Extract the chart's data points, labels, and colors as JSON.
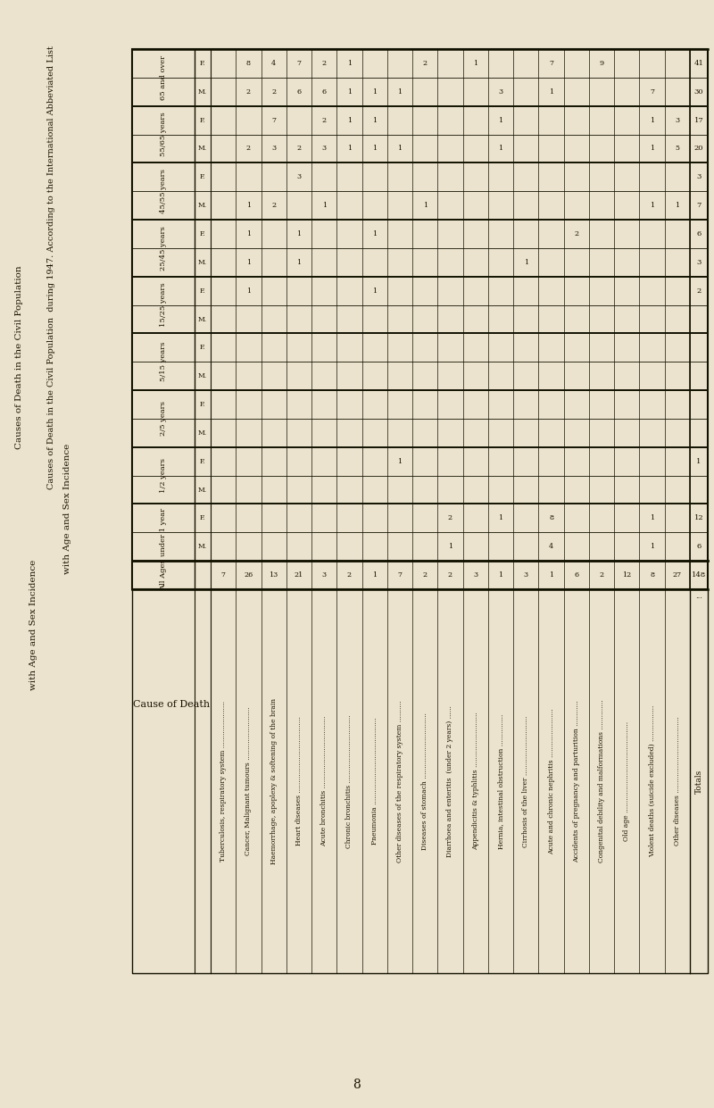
{
  "bg_color": "#ece3ce",
  "title_line1": "Causes of Death in the Civil Population  during 1947. According to the International Abbeviated List",
  "title_line2": "with Age and Sex Incidence",
  "sidebar_text1": "Causes of Death in the Civil Population",
  "sidebar_text2": "with Age and Sex Incidence",
  "page_num": "8",
  "causes": [
    "Tuberculosis, respiratory system",
    "Cancer, Malignant tumours",
    "Haemorrhage, apoplexy & softening of the brain",
    "Heart diseases",
    "Acute bronchitis",
    "Chronic bronchitis",
    "Pneumonia",
    "Other diseases of the respiratory system",
    "Diseases of stomach",
    "Diarrhoea and enteritis  (under 2 years)",
    "Appendicitis & typhlitis",
    "Hernia, intestinal obstruction",
    "Cirrhosis of the liver",
    "Acute and chronic nephritis",
    "Accidents of pregnancy and parturition",
    "Congenital debility and malformations",
    "Old age",
    "Violent deaths (suicide excluded)",
    "Other diseases"
  ],
  "cause_dots": [
    " ......................",
    " .........................",
    "",
    " ....................................",
    " ..................................",
    " ................................",
    " .........................................",
    " ..........",
    " ...............................",
    " ......",
    " ..........................",
    " ...............",
    " ............................",
    " .......................",
    " ............",
    " ..............",
    " ...........................................",
    " .................",
    " ...................................."
  ],
  "age_groups": [
    "under 1 year",
    "1/2 years",
    "2/5 years",
    "5/15 years",
    "15/25 years",
    "25/45 years",
    "45/55 years",
    "55/65 years",
    "65 and over"
  ],
  "all_ages": [
    7,
    26,
    13,
    21,
    3,
    2,
    1,
    7,
    2,
    2,
    3,
    1,
    3,
    1,
    6,
    2,
    12,
    8,
    27
  ],
  "all_ages_total": 148,
  "rows_MF": [
    {
      "M": [
        "",
        "",
        "",
        "",
        "",
        "",
        "",
        "",
        "",
        1,
        "",
        "",
        "",
        4,
        "",
        "",
        "",
        1,
        ""
      ],
      "F": [
        "",
        "",
        "",
        "",
        "",
        "",
        "",
        "",
        "",
        2,
        "",
        1,
        "",
        8,
        "",
        "",
        "",
        1,
        ""
      ],
      "Mtot": 6,
      "Ftot": 12
    },
    {
      "M": [
        "",
        "",
        "",
        "",
        "",
        "",
        "",
        "",
        "",
        "",
        "",
        "",
        "",
        "",
        "",
        "",
        "",
        "",
        ""
      ],
      "F": [
        "",
        "",
        "",
        "",
        "",
        "",
        "",
        1,
        "",
        "",
        "",
        "",
        "",
        "",
        "",
        "",
        "",
        "",
        ""
      ],
      "Mtot": "",
      "Ftot": 1
    },
    {
      "M": [
        "",
        "",
        "",
        "",
        "",
        "",
        "",
        "",
        "",
        "",
        "",
        "",
        "",
        "",
        "",
        "",
        "",
        "",
        ""
      ],
      "F": [
        "",
        "",
        "",
        "",
        "",
        "",
        "",
        "",
        "",
        "",
        "",
        "",
        "",
        "",
        "",
        "",
        "",
        "",
        ""
      ],
      "Mtot": "",
      "Ftot": ""
    },
    {
      "M": [
        "",
        "",
        "",
        "",
        "",
        "",
        "",
        "",
        "",
        "",
        "",
        "",
        "",
        "",
        "",
        "",
        "",
        "",
        ""
      ],
      "F": [
        "",
        "",
        "",
        "",
        "",
        "",
        "",
        "",
        "",
        "",
        "",
        "",
        "",
        "",
        "",
        "",
        "",
        "",
        ""
      ],
      "Mtot": "",
      "Ftot": ""
    },
    {
      "M": [
        "",
        "",
        "",
        "",
        "",
        "",
        "",
        "",
        "",
        "",
        "",
        "",
        "",
        "",
        "",
        "",
        "",
        "",
        ""
      ],
      "F": [
        "",
        1,
        "",
        "",
        "",
        "",
        1,
        "",
        "",
        "",
        "",
        "",
        "",
        "",
        "",
        "",
        "",
        "",
        ""
      ],
      "Mtot": "",
      "Ftot": 2
    },
    {
      "M": [
        "",
        1,
        "",
        1,
        "",
        "",
        "",
        "",
        "",
        "",
        "",
        "",
        1,
        "",
        "",
        "",
        "",
        "",
        ""
      ],
      "F": [
        "",
        1,
        "",
        1,
        "",
        "",
        1,
        "",
        "",
        "",
        "",
        "",
        "",
        "",
        2,
        "",
        "",
        "",
        ""
      ],
      "Mtot": 3,
      "Ftot": 6
    },
    {
      "M": [
        "",
        1,
        2,
        "",
        1,
        "",
        "",
        "",
        1,
        "",
        "",
        "",
        "",
        "",
        "",
        "",
        "",
        1,
        1
      ],
      "F": [
        "",
        "",
        "",
        3,
        "",
        "",
        "",
        "",
        "",
        "",
        "",
        "",
        "",
        "",
        "",
        "",
        "",
        "",
        ""
      ],
      "Mtot": 7,
      "Ftot": 3
    },
    {
      "M": [
        "",
        2,
        3,
        2,
        3,
        1,
        1,
        1,
        "",
        "",
        "",
        1,
        "",
        "",
        "",
        "",
        "",
        1,
        5
      ],
      "F": [
        "",
        "",
        7,
        "",
        2,
        1,
        1,
        "",
        "",
        "",
        "",
        1,
        "",
        "",
        "",
        "",
        "",
        1,
        3
      ],
      "Mtot": 20,
      "Ftot": 17
    },
    {
      "M": [
        "",
        2,
        2,
        6,
        6,
        1,
        1,
        1,
        "",
        "",
        "",
        3,
        "",
        1,
        "",
        "",
        "",
        7,
        ""
      ],
      "F": [
        "",
        8,
        4,
        7,
        2,
        1,
        "",
        "",
        2,
        "",
        1,
        "",
        "",
        7,
        "",
        9,
        "",
        "",
        ""
      ],
      "Mtot": 30,
      "Ftot": 41
    }
  ]
}
